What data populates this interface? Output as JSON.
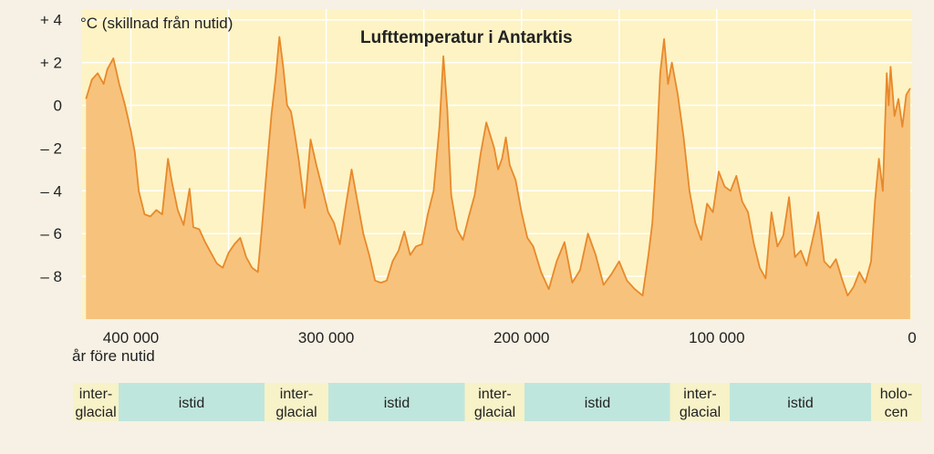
{
  "chart_data": {
    "type": "area",
    "title": "Lufttemperatur i Antarktis",
    "unit_label": "°C (skillnad från nutid)",
    "xlabel": "år före nutid",
    "xlim": [
      425000,
      0
    ],
    "ylim": [
      -10,
      4.5
    ],
    "y_ticks": [
      {
        "value": 4,
        "label": "+ 4"
      },
      {
        "value": 2,
        "label": "+ 2"
      },
      {
        "value": 0,
        "label": "0"
      },
      {
        "value": -2,
        "label": "– 2"
      },
      {
        "value": -4,
        "label": "– 4"
      },
      {
        "value": -6,
        "label": "– 6"
      },
      {
        "value": -8,
        "label": "– 8"
      }
    ],
    "x_ticks": [
      {
        "value": 400000,
        "label": "400 000"
      },
      {
        "value": 300000,
        "label": "300 000"
      },
      {
        "value": 200000,
        "label": "200 000"
      },
      {
        "value": 100000,
        "label": "100 000"
      },
      {
        "value": 0,
        "label": "0"
      }
    ],
    "grid": true,
    "colors": {
      "line": "#e8892a",
      "fill": "#f7c27c",
      "plot_bg": "#fdf3c4",
      "grid": "#ffffff",
      "band_teal": "#bfe6dd",
      "band_yellow": "#f7f2c8"
    },
    "series": [
      {
        "x": [
          423000,
          420000,
          417000,
          414000,
          412000,
          409000,
          406000,
          403000,
          400000,
          398000,
          396000,
          393000,
          390000,
          387000,
          384000,
          381000,
          379000,
          376000,
          373000,
          370000,
          368000,
          365000,
          362000,
          359000,
          356000,
          353000,
          350000,
          347000,
          344000,
          341000,
          338000,
          335000,
          333000,
          330000,
          328000,
          326000,
          324000,
          322000,
          320000,
          318000,
          316000,
          314000,
          311000,
          308000,
          305000,
          302000,
          299000,
          296000,
          293000,
          290000,
          287000,
          284000,
          281000,
          278000,
          275000,
          272000,
          269000,
          266000,
          263000,
          260000,
          257000,
          254000,
          251000,
          248000,
          245000,
          242000,
          240000,
          238000,
          236000,
          233000,
          230000,
          227000,
          224000,
          221000,
          218000,
          216000,
          214000,
          212000,
          210000,
          208000,
          206000,
          203000,
          200000,
          197000,
          194000,
          190000,
          186000,
          182000,
          178000,
          174000,
          170000,
          166000,
          162000,
          158000,
          154000,
          150000,
          146000,
          142000,
          138000,
          135000,
          133000,
          131000,
          129000,
          127000,
          125000,
          123000,
          120000,
          117000,
          114000,
          111000,
          108000,
          105000,
          102000,
          99000,
          96000,
          93000,
          90000,
          87000,
          84000,
          81000,
          78000,
          75000,
          72000,
          69000,
          66000,
          63000,
          60000,
          57000,
          54000,
          51000,
          48000,
          45000,
          42000,
          39000,
          36000,
          33000,
          30000,
          27000,
          24000,
          21000,
          19000,
          17000,
          15000,
          13000,
          12000,
          11000,
          9000,
          7000,
          5000,
          3000,
          1000
        ],
        "y": [
          0.3,
          1.2,
          1.5,
          1.0,
          1.7,
          2.2,
          1.0,
          0.0,
          -1.2,
          -2.2,
          -4.0,
          -5.1,
          -5.2,
          -4.9,
          -5.1,
          -2.5,
          -3.6,
          -4.9,
          -5.6,
          -3.9,
          -5.7,
          -5.8,
          -6.4,
          -6.9,
          -7.4,
          -7.6,
          -6.9,
          -6.5,
          -6.2,
          -7.1,
          -7.6,
          -7.8,
          -5.8,
          -2.5,
          -0.4,
          1.2,
          3.2,
          1.8,
          0.0,
          -0.3,
          -1.4,
          -2.6,
          -4.8,
          -1.6,
          -2.8,
          -3.9,
          -5.0,
          -5.5,
          -6.5,
          -4.7,
          -3.0,
          -4.5,
          -6.0,
          -7.0,
          -8.2,
          -8.3,
          -8.2,
          -7.3,
          -6.8,
          -5.9,
          -7.0,
          -6.6,
          -6.5,
          -5.1,
          -4.0,
          -1.0,
          2.3,
          -0.2,
          -4.2,
          -5.8,
          -6.3,
          -5.2,
          -4.2,
          -2.3,
          -0.8,
          -1.4,
          -2.0,
          -3.0,
          -2.5,
          -1.5,
          -2.8,
          -3.5,
          -5.0,
          -6.2,
          -6.6,
          -7.8,
          -8.6,
          -7.3,
          -6.4,
          -8.3,
          -7.7,
          -6.0,
          -7.0,
          -8.4,
          -7.9,
          -7.3,
          -8.2,
          -8.6,
          -8.9,
          -7.0,
          -5.5,
          -2.5,
          1.5,
          3.1,
          1.0,
          2.0,
          0.5,
          -1.5,
          -4.0,
          -5.5,
          -6.3,
          -4.6,
          -5.0,
          -3.1,
          -3.8,
          -4.0,
          -3.3,
          -4.5,
          -5.0,
          -6.5,
          -7.6,
          -8.1,
          -5.0,
          -6.6,
          -6.1,
          -4.3,
          -7.1,
          -6.8,
          -7.5,
          -6.3,
          -5.0,
          -7.3,
          -7.6,
          -7.2,
          -8.1,
          -8.9,
          -8.5,
          -7.8,
          -8.3,
          -7.3,
          -4.5,
          -2.5,
          -4.0,
          1.5,
          0.0,
          1.8,
          -0.5,
          0.3,
          -1.0,
          0.5,
          0.8
        ]
      }
    ]
  },
  "period_bands": [
    {
      "label": "inter-\nglacial",
      "kind": "interglacial"
    },
    {
      "label": "istid",
      "kind": "istid"
    },
    {
      "label": "inter-\nglacial",
      "kind": "interglacial"
    },
    {
      "label": "istid",
      "kind": "istid"
    },
    {
      "label": "inter-\nglacial",
      "kind": "interglacial"
    },
    {
      "label": "istid",
      "kind": "istid"
    },
    {
      "label": "inter-\nglacial",
      "kind": "interglacial"
    },
    {
      "label": "istid",
      "kind": "istid"
    },
    {
      "label": "holo-\ncen",
      "kind": "interglacial"
    }
  ]
}
